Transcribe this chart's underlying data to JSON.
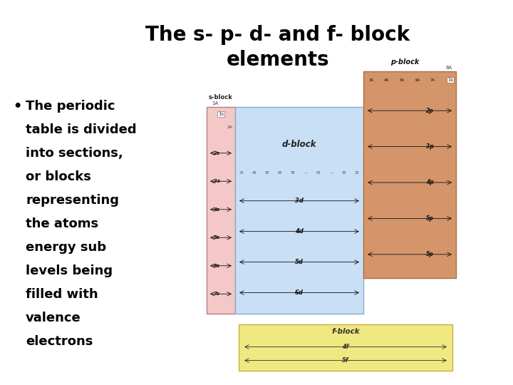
{
  "title": "The s- p- d- and f- block\nelements",
  "bullet_lines": [
    "The periodic",
    "table is divided",
    "into sections,",
    "or blocks",
    "representing",
    "the atoms",
    "energy sub",
    "levels being",
    "filled with",
    "valence",
    "electrons"
  ],
  "bg_color": "#ffffff",
  "title_fontsize": 20,
  "bullet_fontsize": 13,
  "sblock_color": "#f5c8c8",
  "sblock_border": "#b08080",
  "dblock_color": "#c8dff5",
  "dblock_border": "#8aabcf",
  "pblock_color": "#d4956a",
  "pblock_border": "#b07040",
  "fblock_color": "#f0e880",
  "fblock_border": "#c8b040",
  "note_p_orbitals": [
    "2p",
    "3p",
    "4p",
    "5p",
    "5p"
  ],
  "note_last_p_is_typo": true
}
